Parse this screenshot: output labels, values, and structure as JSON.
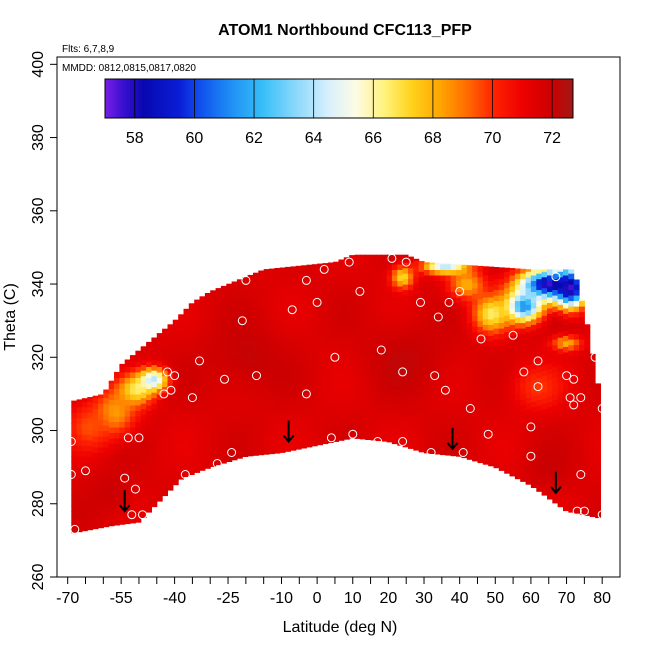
{
  "chart_data": {
    "type": "heatmap",
    "title": "ATOM1 Northbound CFC113_PFP",
    "notes": [
      "Flts: 6,7,8,9",
      "MMDD: 0812,0815,0817,0820"
    ],
    "xlabel": "Latitude (deg N)",
    "ylabel": "Theta (C)",
    "xlim": [
      -73,
      85
    ],
    "ylim": [
      260,
      402
    ],
    "xticks": [
      -70,
      -55,
      -40,
      -25,
      -10,
      0,
      10,
      20,
      30,
      40,
      50,
      60,
      70,
      80
    ],
    "xminor": [
      -65,
      -60,
      -50,
      -45,
      -35,
      -30,
      -20,
      -15,
      -5,
      5,
      15,
      25,
      35,
      45,
      55,
      65,
      75
    ],
    "yticks": [
      260,
      280,
      300,
      320,
      340,
      360,
      380,
      400
    ],
    "colorbar": {
      "min": 57,
      "max": 72.7,
      "ticks": [
        58,
        60,
        62,
        64,
        66,
        68,
        70,
        72
      ],
      "stops": [
        {
          "v": 57.0,
          "c": "#7a1fe6"
        },
        {
          "v": 57.6,
          "c": "#3a10d0"
        },
        {
          "v": 58.3,
          "c": "#0808b0"
        },
        {
          "v": 59.5,
          "c": "#0a1ed6"
        },
        {
          "v": 60.2,
          "c": "#1050ee"
        },
        {
          "v": 61.2,
          "c": "#1e8ef5"
        },
        {
          "v": 62.3,
          "c": "#38bff8"
        },
        {
          "v": 63.4,
          "c": "#8ad8fb"
        },
        {
          "v": 64.5,
          "c": "#d8f0fc"
        },
        {
          "v": 65.4,
          "c": "#fdfbe6"
        },
        {
          "v": 66.4,
          "c": "#fff27a"
        },
        {
          "v": 67.3,
          "c": "#ffd21a"
        },
        {
          "v": 68.3,
          "c": "#ffa200"
        },
        {
          "v": 69.2,
          "c": "#ff6800"
        },
        {
          "v": 70.0,
          "c": "#ff2400"
        },
        {
          "v": 71.0,
          "c": "#ee0000"
        },
        {
          "v": 72.0,
          "c": "#cc0000"
        },
        {
          "v": 72.7,
          "c": "#a21818"
        }
      ]
    },
    "field": {
      "background": 71.5,
      "domain_top": [
        [
          -69,
          308
        ],
        [
          -60,
          310
        ],
        [
          -55,
          318
        ],
        [
          -50,
          322
        ],
        [
          -45,
          326
        ],
        [
          -40,
          330
        ],
        [
          -35,
          335
        ],
        [
          -30,
          338
        ],
        [
          -25,
          340
        ],
        [
          -20,
          342
        ],
        [
          -15,
          344
        ],
        [
          -5,
          345
        ],
        [
          5,
          346
        ],
        [
          10,
          348
        ],
        [
          20,
          348
        ],
        [
          25,
          348
        ],
        [
          30,
          346
        ],
        [
          45,
          345
        ],
        [
          60,
          344
        ],
        [
          72,
          344
        ],
        [
          75,
          333
        ],
        [
          78,
          317
        ],
        [
          80,
          306
        ],
        [
          80,
          276
        ]
      ],
      "domain_bottom": [
        [
          -69,
          272
        ],
        [
          -58,
          274
        ],
        [
          -50,
          275
        ],
        [
          -45,
          280
        ],
        [
          -38,
          287
        ],
        [
          -30,
          290
        ],
        [
          -20,
          293
        ],
        [
          -10,
          294
        ],
        [
          0,
          296
        ],
        [
          10,
          298
        ],
        [
          20,
          297
        ],
        [
          30,
          294
        ],
        [
          40,
          293
        ],
        [
          50,
          290
        ],
        [
          60,
          285
        ],
        [
          70,
          278
        ],
        [
          80,
          276
        ]
      ],
      "anomalies": [
        {
          "lat": -51,
          "theta": 311,
          "v": 66.5,
          "slat": 5,
          "sth": 4
        },
        {
          "lat": -46,
          "theta": 314,
          "v": 64.0,
          "slat": 4,
          "sth": 3
        },
        {
          "lat": -57,
          "theta": 305,
          "v": 68.2,
          "slat": 6,
          "sth": 6
        },
        {
          "lat": -64,
          "theta": 301,
          "v": 69.5,
          "slat": 6,
          "sth": 6
        },
        {
          "lat": 65,
          "theta": 340,
          "v": 57.5,
          "slat": 8,
          "sth": 4
        },
        {
          "lat": 71,
          "theta": 339,
          "v": 57.5,
          "slat": 4,
          "sth": 5
        },
        {
          "lat": 58,
          "theta": 334,
          "v": 61.0,
          "slat": 5,
          "sth": 4
        },
        {
          "lat": 49,
          "theta": 332,
          "v": 66.5,
          "slat": 5,
          "sth": 5
        },
        {
          "lat": 42,
          "theta": 340,
          "v": 68.0,
          "slat": 5,
          "sth": 4
        },
        {
          "lat": 36,
          "theta": 345,
          "v": 64.0,
          "slat": 6,
          "sth": 2
        },
        {
          "lat": 24,
          "theta": 342,
          "v": 67.0,
          "slat": 3,
          "sth": 3
        },
        {
          "lat": 70,
          "theta": 324,
          "v": 68.0,
          "slat": 4,
          "sth": 2
        },
        {
          "lat": 62,
          "theta": 312,
          "v": 69.8,
          "slat": 7,
          "sth": 6
        },
        {
          "lat": -20,
          "theta": 320,
          "v": 72.6,
          "slat": 12,
          "sth": 10
        },
        {
          "lat": 25,
          "theta": 320,
          "v": 72.5,
          "slat": 12,
          "sth": 10
        },
        {
          "lat": -58,
          "theta": 283,
          "v": 72.4,
          "slat": 6,
          "sth": 6
        },
        {
          "lat": 65,
          "theta": 290,
          "v": 72.3,
          "slat": 6,
          "sth": 6
        }
      ]
    },
    "samples": [
      [
        -69,
        297
      ],
      [
        -69,
        288
      ],
      [
        -68,
        273
      ],
      [
        -65,
        289
      ],
      [
        -54,
        287
      ],
      [
        -53,
        298
      ],
      [
        -52,
        277
      ],
      [
        -50,
        298
      ],
      [
        -51,
        284
      ],
      [
        -49,
        277
      ],
      [
        -43,
        310
      ],
      [
        -42,
        316
      ],
      [
        -41,
        311
      ],
      [
        -40,
        315
      ],
      [
        -37,
        288
      ],
      [
        -35,
        309
      ],
      [
        -33,
        319
      ],
      [
        -28,
        291
      ],
      [
        -26,
        314
      ],
      [
        -24,
        294
      ],
      [
        -21,
        330
      ],
      [
        -20,
        341
      ],
      [
        -17,
        315
      ],
      [
        -7,
        333
      ],
      [
        -3,
        341
      ],
      [
        -3,
        310
      ],
      [
        0,
        335
      ],
      [
        2,
        344
      ],
      [
        4,
        298
      ],
      [
        5,
        320
      ],
      [
        9,
        346
      ],
      [
        10,
        299
      ],
      [
        12,
        338
      ],
      [
        17,
        297
      ],
      [
        18,
        322
      ],
      [
        21,
        347
      ],
      [
        24,
        297
      ],
      [
        24,
        316
      ],
      [
        25,
        346
      ],
      [
        29,
        335
      ],
      [
        32,
        294
      ],
      [
        33,
        315
      ],
      [
        34,
        331
      ],
      [
        36,
        311
      ],
      [
        37,
        335
      ],
      [
        40,
        338
      ],
      [
        41,
        294
      ],
      [
        43,
        306
      ],
      [
        46,
        325
      ],
      [
        48,
        299
      ],
      [
        55,
        326
      ],
      [
        58,
        316
      ],
      [
        60,
        301
      ],
      [
        60,
        293
      ],
      [
        62,
        312
      ],
      [
        62,
        319
      ],
      [
        67,
        342
      ],
      [
        70,
        315
      ],
      [
        71,
        309
      ],
      [
        72,
        307
      ],
      [
        72,
        314
      ],
      [
        73,
        278
      ],
      [
        74,
        309
      ],
      [
        74,
        288
      ],
      [
        75,
        278
      ],
      [
        78,
        320
      ],
      [
        80,
        306
      ],
      [
        80,
        277
      ]
    ],
    "arrows": [
      [
        -54,
        281
      ],
      [
        -8,
        300
      ],
      [
        38,
        298
      ],
      [
        67,
        286
      ]
    ]
  }
}
